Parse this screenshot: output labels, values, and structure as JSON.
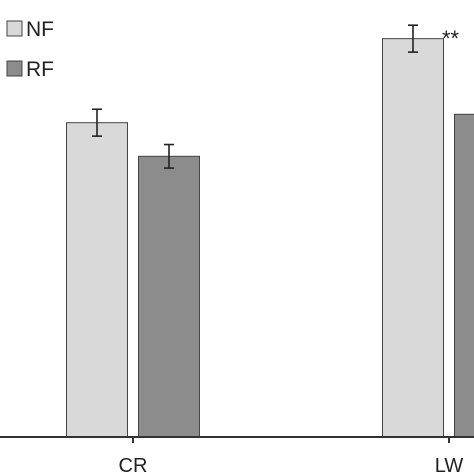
{
  "chart_data": {
    "type": "bar",
    "categories": [
      "CR",
      "LW"
    ],
    "series": [
      {
        "name": "NF",
        "values": [
          93.5,
          118.5
        ],
        "errors": [
          4,
          4
        ],
        "color": "#d9d9d9"
      },
      {
        "name": "RF",
        "values": [
          83.5,
          96
        ],
        "errors": [
          3.5,
          0
        ],
        "color": "#8c8c8c"
      }
    ],
    "ylim": [
      0,
      130
    ],
    "grid": false,
    "legend": "top-left",
    "title": "",
    "xlabel": "",
    "ylabel": "",
    "annotations": [
      {
        "text": "**",
        "category": "LW"
      }
    ]
  }
}
